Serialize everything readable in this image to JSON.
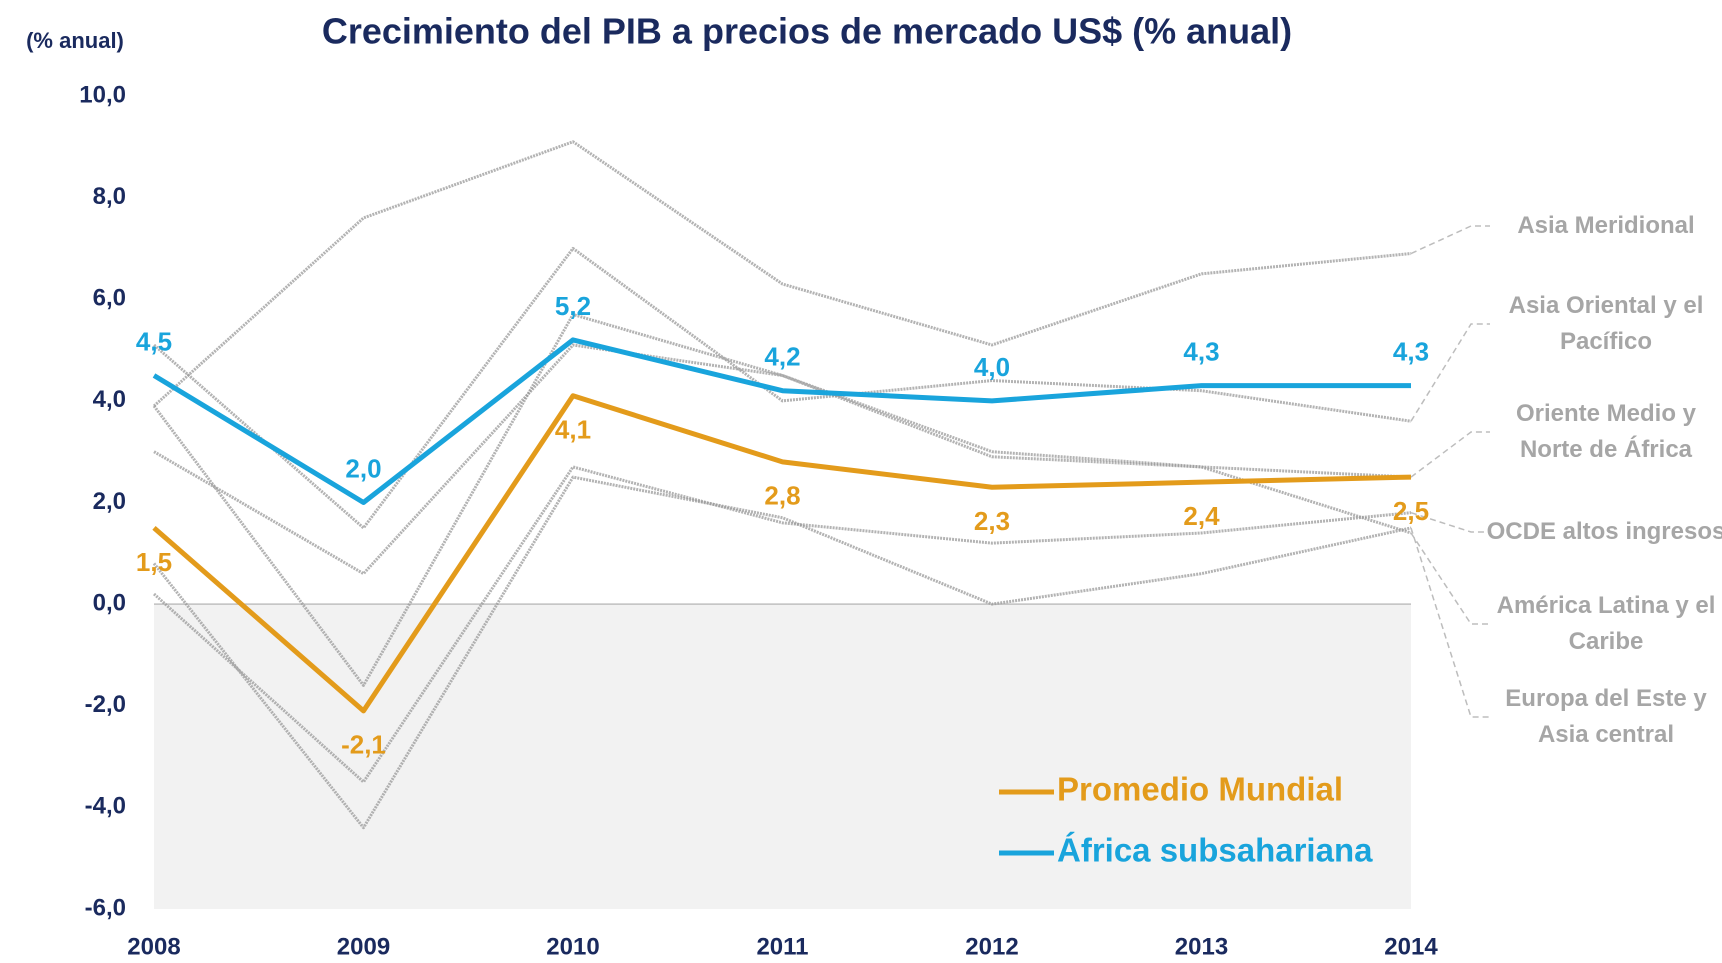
{
  "chart_data": {
    "type": "line",
    "title": "Crecimiento del PIB a precios de mercado US$ (% anual)",
    "y_label": "(% anual)",
    "categories": [
      "2008",
      "2009",
      "2010",
      "2011",
      "2012",
      "2013",
      "2014"
    ],
    "ylim": [
      -6,
      10
    ],
    "yticks": [
      {
        "value": -6,
        "label": "-6,0"
      },
      {
        "value": -4,
        "label": "-4,0"
      },
      {
        "value": -2,
        "label": "-2,0"
      },
      {
        "value": 0,
        "label": "0,0"
      },
      {
        "value": 2,
        "label": "2,0"
      },
      {
        "value": 4,
        "label": "4,0"
      },
      {
        "value": 6,
        "label": "6,0"
      },
      {
        "value": 8,
        "label": "8,0"
      },
      {
        "value": 10,
        "label": "10,0"
      }
    ],
    "series": [
      {
        "name": "Asia Meridional",
        "color": "#9a9a9a",
        "values": [
          3.9,
          7.6,
          9.1,
          6.3,
          5.1,
          6.5,
          6.9
        ]
      },
      {
        "name": "Asia Oriental y el Pacífico",
        "color": "#9a9a9a",
        "values": [
          5.1,
          1.5,
          7.0,
          4.0,
          4.4,
          4.2,
          3.6
        ]
      },
      {
        "name": "Oriente Medio y Norte de África",
        "color": "#9a9a9a",
        "values": [
          3.0,
          0.6,
          5.1,
          4.5,
          3.0,
          2.7,
          2.5
        ]
      },
      {
        "name": "OCDE altos ingresos",
        "color": "#9a9a9a",
        "values": [
          0.2,
          -3.5,
          2.7,
          1.6,
          1.2,
          1.4,
          1.8
        ]
      },
      {
        "name": "América Latina y el Caribe",
        "color": "#9a9a9a",
        "values": [
          3.9,
          -1.6,
          5.7,
          4.5,
          2.9,
          2.7,
          1.4
        ]
      },
      {
        "name": "Europa del Este y Asia central",
        "color": "#9a9a9a",
        "values": [
          0.8,
          -4.4,
          2.5,
          1.7,
          0.0,
          0.6,
          1.5
        ]
      },
      {
        "name": "Promedio Mundial",
        "color": "#e39b1b",
        "values": [
          1.5,
          -2.1,
          4.1,
          2.8,
          2.3,
          2.4,
          2.5
        ],
        "value_labels": [
          "1,5",
          "-2,1",
          "4,1",
          "2,8",
          "2,3",
          "2,4",
          "2,5"
        ]
      },
      {
        "name": "África subsahariana",
        "color": "#19a4dc",
        "values": [
          4.5,
          2.0,
          5.2,
          4.2,
          4.0,
          4.3,
          4.3
        ],
        "value_labels": [
          "4,5",
          "2,0",
          "5,2",
          "4,2",
          "4,0",
          "4,3",
          "4,3"
        ]
      }
    ]
  }
}
